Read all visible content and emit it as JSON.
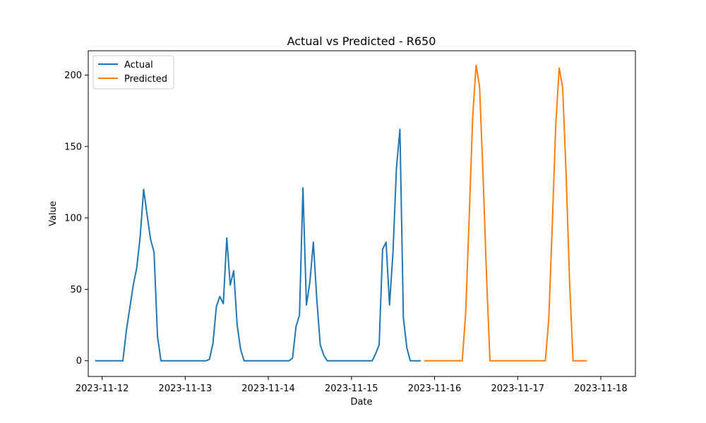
{
  "chart_data": {
    "type": "line",
    "title": "Actual vs Predicted - R650",
    "xlabel": "Date",
    "ylabel": "Value",
    "x_ticks": [
      "2023-11-12",
      "2023-11-13",
      "2023-11-14",
      "2023-11-15",
      "2023-11-16",
      "2023-11-17",
      "2023-11-18"
    ],
    "y_ticks": [
      0,
      50,
      100,
      150,
      200
    ],
    "xlim": [
      "2023-11-11 20:00",
      "2023-11-18 10:00"
    ],
    "ylim": [
      -11,
      217
    ],
    "grid": false,
    "legend": "upper-left",
    "series": [
      {
        "name": "Actual",
        "color": "#1f77b4",
        "points": [
          [
            "2023-11-11 22:00",
            0
          ],
          [
            "2023-11-12 00:00",
            0
          ],
          [
            "2023-11-12 02:00",
            0
          ],
          [
            "2023-11-12 04:00",
            0
          ],
          [
            "2023-11-12 06:00",
            0
          ],
          [
            "2023-11-12 07:00",
            21
          ],
          [
            "2023-11-12 08:00",
            37
          ],
          [
            "2023-11-12 09:00",
            53
          ],
          [
            "2023-11-12 10:00",
            65
          ],
          [
            "2023-11-12 11:00",
            87
          ],
          [
            "2023-11-12 12:00",
            120
          ],
          [
            "2023-11-12 13:00",
            102
          ],
          [
            "2023-11-12 14:00",
            85
          ],
          [
            "2023-11-12 15:00",
            76
          ],
          [
            "2023-11-12 16:00",
            17
          ],
          [
            "2023-11-12 17:00",
            0
          ],
          [
            "2023-11-12 20:00",
            0
          ],
          [
            "2023-11-13 00:00",
            0
          ],
          [
            "2023-11-13 04:00",
            0
          ],
          [
            "2023-11-13 06:00",
            0
          ],
          [
            "2023-11-13 07:00",
            1
          ],
          [
            "2023-11-13 08:00",
            12
          ],
          [
            "2023-11-13 09:00",
            38
          ],
          [
            "2023-11-13 10:00",
            45
          ],
          [
            "2023-11-13 11:00",
            40
          ],
          [
            "2023-11-13 12:00",
            86
          ],
          [
            "2023-11-13 13:00",
            53
          ],
          [
            "2023-11-13 14:00",
            63
          ],
          [
            "2023-11-13 15:00",
            25
          ],
          [
            "2023-11-13 16:00",
            8
          ],
          [
            "2023-11-13 17:00",
            0
          ],
          [
            "2023-11-13 20:00",
            0
          ],
          [
            "2023-11-14 00:00",
            0
          ],
          [
            "2023-11-14 04:00",
            0
          ],
          [
            "2023-11-14 06:00",
            0
          ],
          [
            "2023-11-14 07:00",
            2
          ],
          [
            "2023-11-14 08:00",
            24
          ],
          [
            "2023-11-14 09:00",
            32
          ],
          [
            "2023-11-14 10:00",
            121
          ],
          [
            "2023-11-14 11:00",
            39
          ],
          [
            "2023-11-14 12:00",
            55
          ],
          [
            "2023-11-14 13:00",
            83
          ],
          [
            "2023-11-14 14:00",
            43
          ],
          [
            "2023-11-14 15:00",
            11
          ],
          [
            "2023-11-14 16:00",
            4
          ],
          [
            "2023-11-14 17:00",
            0
          ],
          [
            "2023-11-14 20:00",
            0
          ],
          [
            "2023-11-15 00:00",
            0
          ],
          [
            "2023-11-15 04:00",
            0
          ],
          [
            "2023-11-15 06:00",
            0
          ],
          [
            "2023-11-15 07:00",
            5
          ],
          [
            "2023-11-15 08:00",
            11
          ],
          [
            "2023-11-15 09:00",
            78
          ],
          [
            "2023-11-15 10:00",
            83
          ],
          [
            "2023-11-15 11:00",
            39
          ],
          [
            "2023-11-15 12:00",
            76
          ],
          [
            "2023-11-15 13:00",
            135
          ],
          [
            "2023-11-15 14:00",
            162
          ],
          [
            "2023-11-15 15:00",
            30
          ],
          [
            "2023-11-15 16:00",
            9
          ],
          [
            "2023-11-15 17:00",
            0
          ],
          [
            "2023-11-15 20:00",
            0
          ]
        ]
      },
      {
        "name": "Predicted",
        "color": "#ff7f0e",
        "points": [
          [
            "2023-11-15 21:00",
            0
          ],
          [
            "2023-11-16 00:00",
            0
          ],
          [
            "2023-11-16 04:00",
            0
          ],
          [
            "2023-11-16 08:00",
            0
          ],
          [
            "2023-11-16 09:00",
            34
          ],
          [
            "2023-11-16 10:00",
            100
          ],
          [
            "2023-11-16 11:00",
            170
          ],
          [
            "2023-11-16 12:00",
            207
          ],
          [
            "2023-11-16 13:00",
            192
          ],
          [
            "2023-11-16 14:00",
            130
          ],
          [
            "2023-11-16 15:00",
            60
          ],
          [
            "2023-11-16 16:00",
            0
          ],
          [
            "2023-11-16 20:00",
            0
          ],
          [
            "2023-11-17 00:00",
            0
          ],
          [
            "2023-11-17 04:00",
            0
          ],
          [
            "2023-11-17 08:00",
            0
          ],
          [
            "2023-11-17 09:00",
            30
          ],
          [
            "2023-11-17 10:00",
            95
          ],
          [
            "2023-11-17 11:00",
            165
          ],
          [
            "2023-11-17 12:00",
            205
          ],
          [
            "2023-11-17 13:00",
            191
          ],
          [
            "2023-11-17 14:00",
            130
          ],
          [
            "2023-11-17 15:00",
            55
          ],
          [
            "2023-11-17 16:00",
            0
          ],
          [
            "2023-11-17 20:00",
            0
          ]
        ]
      }
    ]
  }
}
